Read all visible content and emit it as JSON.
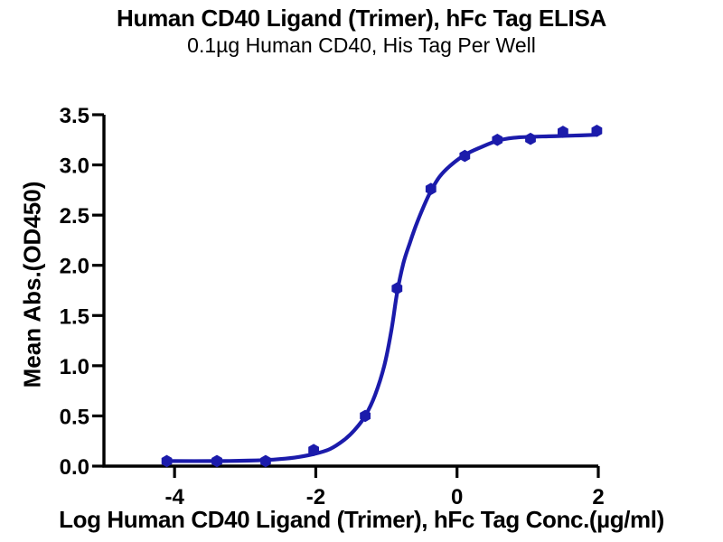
{
  "page": {
    "background": "#ffffff"
  },
  "chart_data": {
    "type": "scatter",
    "title": "Human CD40 Ligand (Trimer), hFc Tag ELISA",
    "subtitle": "0.1µg Human CD40, His Tag Per Well",
    "xlabel": "Log Human CD40 Ligand (Trimer), hFc Tag Conc.(µg/ml)",
    "ylabel": "Mean Abs.(OD450)",
    "xlim": [
      -5,
      2
    ],
    "ylim": [
      0,
      3.5
    ],
    "grid": false,
    "legend": "none",
    "x_ticks": [
      -4,
      -2,
      0,
      2
    ],
    "x_tick_labels": [
      "-4",
      "-2",
      "0",
      "2"
    ],
    "y_ticks": [
      0.0,
      0.5,
      1.0,
      1.5,
      2.0,
      2.5,
      3.0,
      3.5
    ],
    "y_tick_labels": [
      "0.0",
      "0.5",
      "1.0",
      "1.5",
      "2.0",
      "2.5",
      "3.0",
      "3.5"
    ],
    "points": [
      [
        -4.11,
        0.05
      ],
      [
        -3.4,
        0.05
      ],
      [
        -2.71,
        0.05
      ],
      [
        -2.03,
        0.16
      ],
      [
        -1.3,
        0.5
      ],
      [
        -0.85,
        1.77
      ],
      [
        -0.37,
        2.76
      ],
      [
        0.11,
        3.09
      ],
      [
        0.57,
        3.25
      ],
      [
        1.04,
        3.26
      ],
      [
        1.5,
        3.33
      ],
      [
        1.98,
        3.34
      ]
    ],
    "fit_curve": [
      [
        -4.11,
        0.05
      ],
      [
        -3.4,
        0.05
      ],
      [
        -2.95,
        0.055
      ],
      [
        -2.6,
        0.065
      ],
      [
        -2.3,
        0.085
      ],
      [
        -2.03,
        0.12
      ],
      [
        -1.8,
        0.17
      ],
      [
        -1.6,
        0.26
      ],
      [
        -1.45,
        0.36
      ],
      [
        -1.3,
        0.5
      ],
      [
        -1.16,
        0.71
      ],
      [
        -1.03,
        1.0
      ],
      [
        -0.93,
        1.35
      ],
      [
        -0.85,
        1.72
      ],
      [
        -0.76,
        2.02
      ],
      [
        -0.67,
        2.22
      ],
      [
        -0.58,
        2.4
      ],
      [
        -0.47,
        2.59
      ],
      [
        -0.37,
        2.74
      ],
      [
        -0.25,
        2.88
      ],
      [
        -0.1,
        2.99
      ],
      [
        0.11,
        3.1
      ],
      [
        0.35,
        3.18
      ],
      [
        0.57,
        3.24
      ],
      [
        0.8,
        3.27
      ],
      [
        1.04,
        3.28
      ],
      [
        1.3,
        3.285
      ],
      [
        1.56,
        3.29
      ],
      [
        1.98,
        3.3
      ]
    ],
    "colors": {
      "series": "#1b1bab",
      "axis": "#000000",
      "text": "#000000"
    },
    "marker": "hexagon"
  }
}
